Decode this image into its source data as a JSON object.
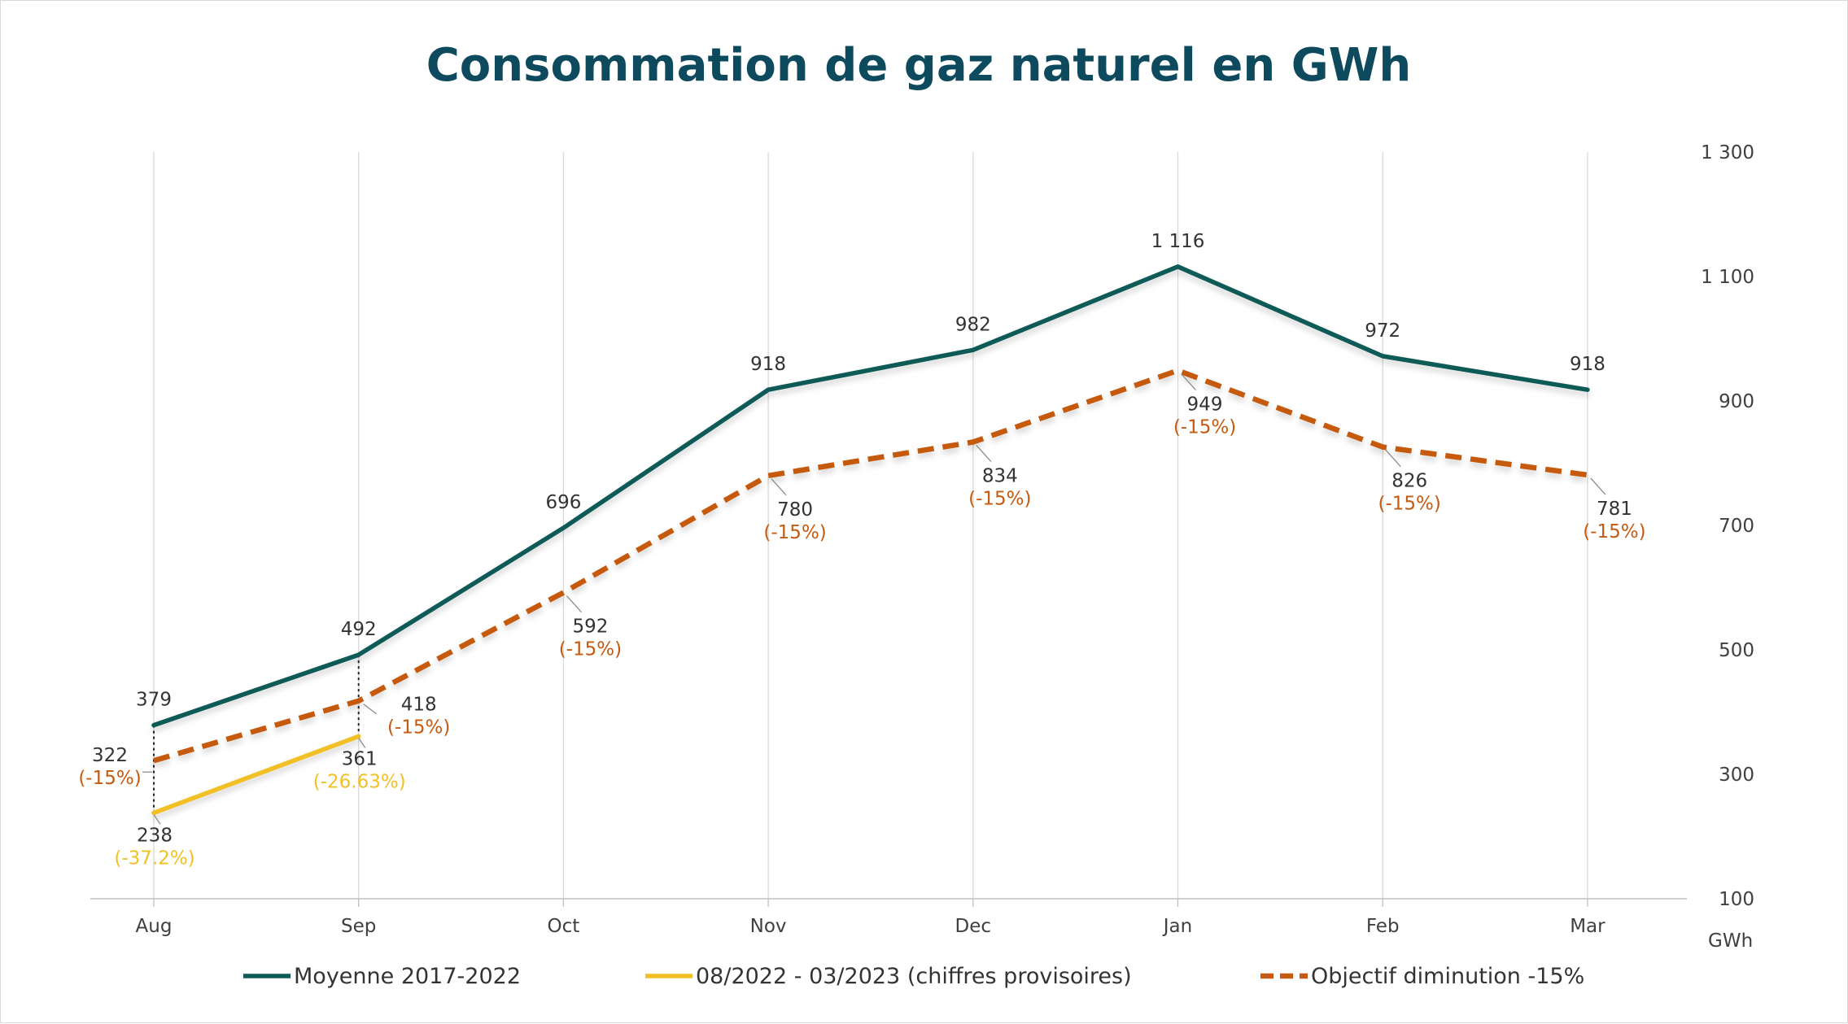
{
  "chart_data": {
    "type": "line",
    "title": "Consommation de gaz naturel en GWh",
    "categories": [
      "Aug",
      "Sep",
      "Oct",
      "Nov",
      "Dec",
      "Jan",
      "Feb",
      "Mar"
    ],
    "y_axis": {
      "unit_label": "GWh",
      "position": "right",
      "range": [
        100,
        1300
      ],
      "ticks": [
        {
          "value": 100,
          "label": "100"
        },
        {
          "value": 300,
          "label": "300"
        },
        {
          "value": 500,
          "label": "500"
        },
        {
          "value": 700,
          "label": "700"
        },
        {
          "value": 900,
          "label": "900"
        },
        {
          "value": 1100,
          "label": "1 100"
        },
        {
          "value": 1300,
          "label": "1 300"
        }
      ]
    },
    "grid": "vertical",
    "legend_position": "bottom",
    "series": [
      {
        "name": "Moyenne 2017-2022",
        "color": "#0f5a57",
        "style": "solid",
        "values": [
          379,
          492,
          696,
          918,
          982,
          1116,
          972,
          918
        ],
        "labels": [
          "379",
          "492",
          "696",
          "918",
          "982",
          "1 116",
          "972",
          "918"
        ]
      },
      {
        "name": "08/2022 - 03/2023 (chiffres provisoires)",
        "color": "#f0c026",
        "style": "solid",
        "values": [
          238,
          361,
          null,
          null,
          null,
          null,
          null,
          null
        ],
        "labels": [
          "238",
          "361",
          null,
          null,
          null,
          null,
          null,
          null
        ],
        "sublabels": [
          "(-37.2%)",
          "(-26.63%)",
          null,
          null,
          null,
          null,
          null,
          null
        ]
      },
      {
        "name": "Objectif diminution -15%",
        "color": "#c55a11",
        "style": "dashed",
        "values": [
          322,
          418,
          592,
          780,
          834,
          949,
          826,
          781
        ],
        "labels": [
          "322",
          "418",
          "592",
          "780",
          "834",
          "949",
          "826",
          "781"
        ],
        "sublabels": [
          "(-15%)",
          "(-15%)",
          "(-15%)",
          "(-15%)",
          "(-15%)",
          "(-15%)",
          "(-15%)",
          "(-15%)"
        ]
      }
    ]
  }
}
